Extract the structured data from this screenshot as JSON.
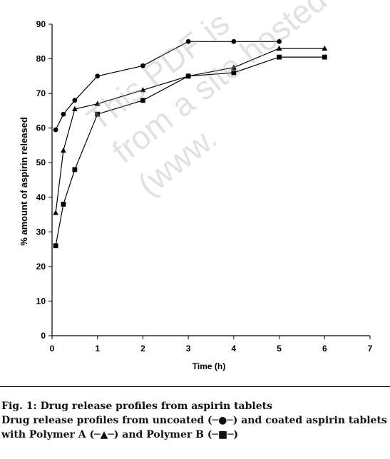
{
  "watermark": "This PDF is\nfrom a site hosted\n(www.",
  "caption": {
    "line1": "Fig. 1: Drug release profiles from aspirin tablets",
    "line2": "Drug release profiles from uncoated (─●─) and coated aspirin tablets",
    "line3": "with Polymer A (─▲─) and Polymer B (─■─)"
  },
  "chart_data": {
    "type": "line",
    "title": "",
    "xlabel": "Time (h)",
    "ylabel": "% amount of aspirin released",
    "xlim": [
      0,
      7
    ],
    "ylim": [
      0,
      90
    ],
    "xticks": [
      0,
      1,
      2,
      3,
      4,
      5,
      6,
      7
    ],
    "yticks": [
      0,
      10,
      20,
      30,
      40,
      50,
      60,
      70,
      80,
      90
    ],
    "grid": false,
    "series": [
      {
        "marker": "circle",
        "color": "#000000",
        "x": [
          0.08,
          0.25,
          0.5,
          1,
          2,
          3,
          4,
          5
        ],
        "y": [
          59.5,
          64,
          68,
          75,
          78,
          85,
          85,
          85
        ]
      },
      {
        "marker": "triangle",
        "color": "#000000",
        "x": [
          0.08,
          0.25,
          0.5,
          1,
          2,
          3,
          4,
          5,
          6
        ],
        "y": [
          35.5,
          53.5,
          65.5,
          67,
          71,
          75,
          77.5,
          83,
          83
        ]
      },
      {
        "marker": "square",
        "color": "#000000",
        "x": [
          0.08,
          0.25,
          0.5,
          1,
          2,
          3,
          4,
          5,
          6
        ],
        "y": [
          26,
          38,
          48,
          64,
          68,
          75,
          76,
          80.5,
          80.5
        ]
      }
    ]
  }
}
